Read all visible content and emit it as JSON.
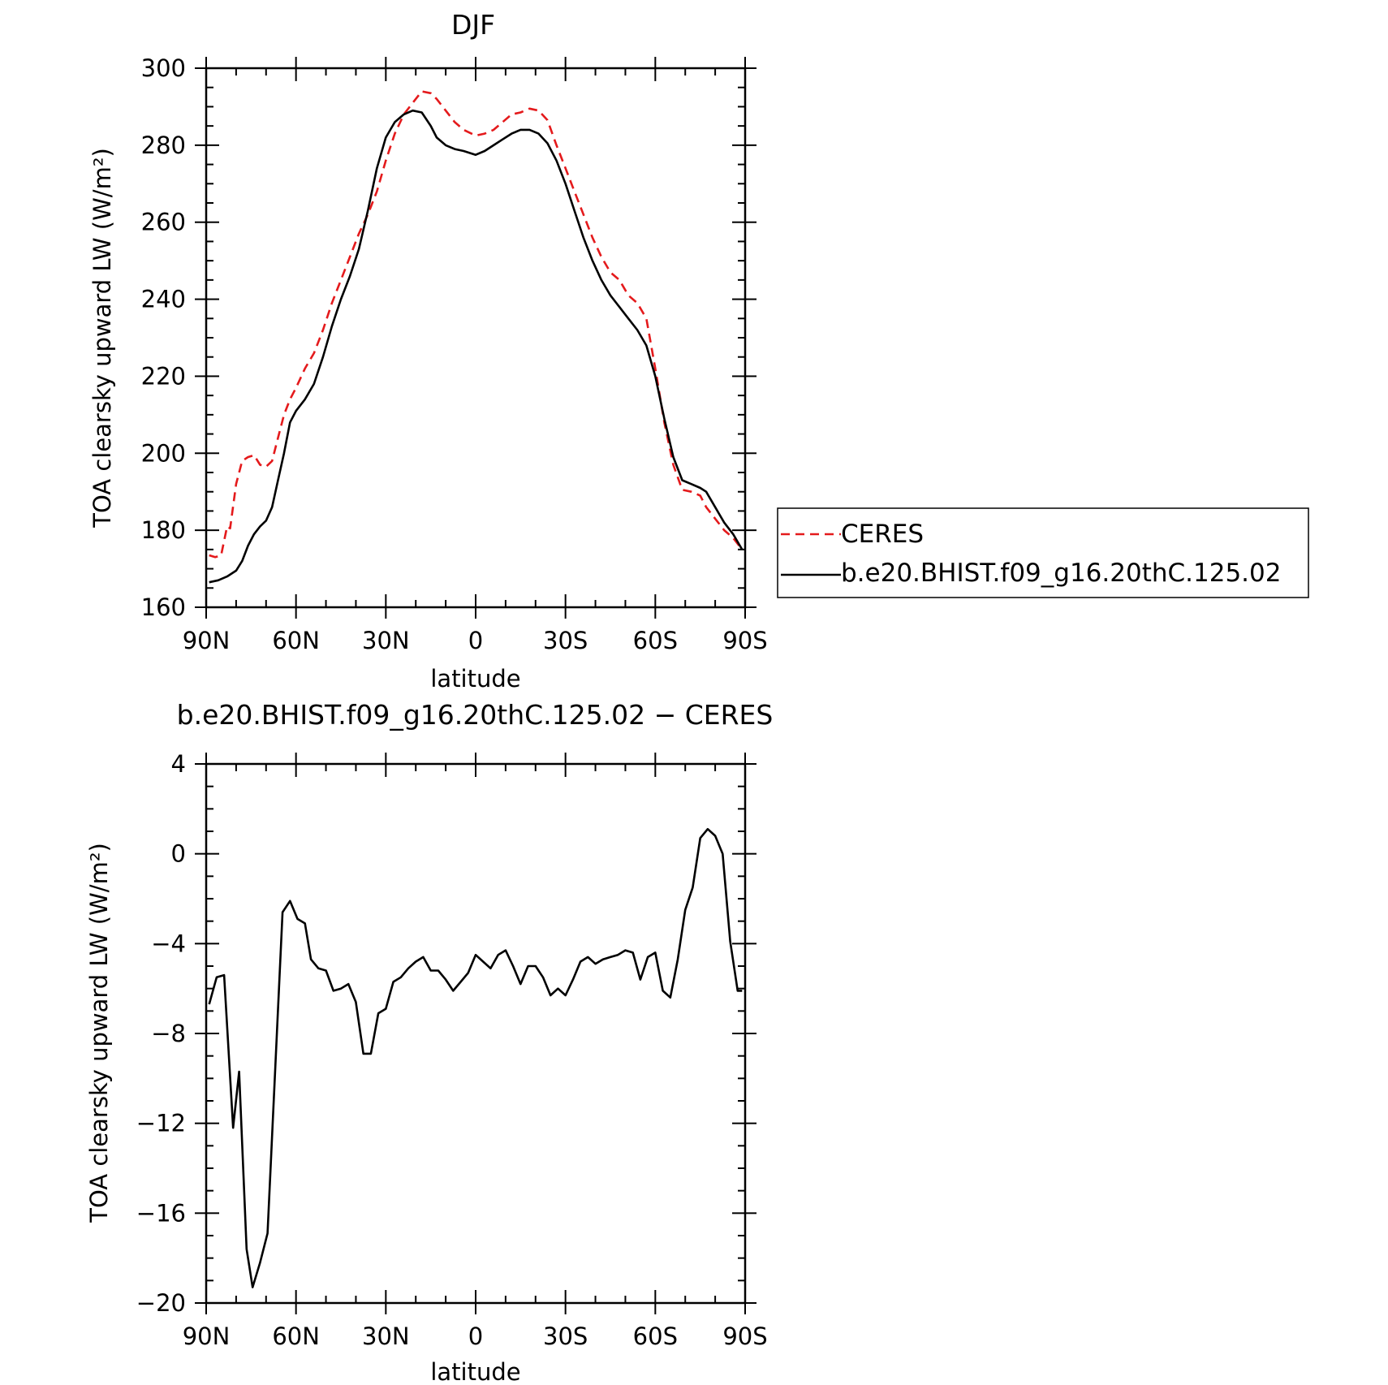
{
  "chart_data": [
    {
      "type": "line",
      "title": "DJF",
      "xlabel": "latitude",
      "ylabel": "TOA clearsky upward LW (W/m²)",
      "xlim": [
        90,
        -90
      ],
      "ylim": [
        160,
        300
      ],
      "xticks": [
        90,
        60,
        30,
        0,
        -30,
        -60,
        -90
      ],
      "xtick_labels": [
        "90N",
        "60N",
        "30N",
        "0",
        "30S",
        "60S",
        "90S"
      ],
      "yticks": [
        160,
        180,
        200,
        220,
        240,
        260,
        280,
        300
      ],
      "ytick_labels": [
        "160",
        "180",
        "200",
        "220",
        "240",
        "260",
        "280",
        "300"
      ],
      "grid": false,
      "legend_position": "right",
      "series": [
        {
          "name": "CERES",
          "color": "#e41a1c",
          "style": "dashed",
          "x": [
            89,
            87,
            85,
            83,
            82,
            80,
            78,
            76,
            74,
            72,
            70,
            68,
            66,
            64,
            62,
            60,
            57,
            54,
            51,
            48,
            45,
            42,
            39,
            36,
            33,
            30,
            27,
            24,
            21,
            18,
            15,
            13,
            10,
            7,
            4,
            0,
            -3,
            -6,
            -9,
            -12,
            -15,
            -18,
            -21,
            -24,
            -27,
            -30,
            -33,
            -36,
            -39,
            -42,
            -45,
            -48,
            -51,
            -54,
            -57,
            -60,
            -63,
            -66,
            -69,
            -72,
            -75,
            -77,
            -80,
            -83,
            -86,
            -89
          ],
          "y": [
            173.5,
            173,
            173.5,
            181,
            180.5,
            192,
            198,
            199,
            199.5,
            197,
            196.5,
            198,
            204,
            210,
            214,
            217,
            222,
            226,
            232,
            239,
            245,
            251,
            257,
            262,
            268,
            276,
            283,
            288,
            291,
            294,
            293.5,
            292,
            289,
            286,
            284,
            282.5,
            283,
            284,
            286,
            288,
            288.5,
            289.5,
            289,
            286.5,
            280,
            274,
            268,
            262,
            256,
            251,
            247,
            245,
            241,
            239,
            235,
            222,
            208,
            197,
            190.5,
            190,
            189,
            186,
            183,
            180,
            178,
            175
          ]
        },
        {
          "name": "b.e20.BHIST.f09_g16.20thC.125.02",
          "color": "#000000",
          "style": "solid",
          "x": [
            89,
            86,
            83,
            80,
            78,
            76,
            74,
            72,
            70,
            68,
            66,
            64,
            62,
            60,
            57,
            54,
            51,
            48,
            45,
            42,
            39,
            36,
            33,
            30,
            27,
            24,
            21,
            18,
            15,
            13,
            10,
            7,
            4,
            0,
            -3,
            -6,
            -9,
            -12,
            -15,
            -18,
            -21,
            -24,
            -27,
            -30,
            -33,
            -36,
            -39,
            -42,
            -45,
            -48,
            -51,
            -54,
            -57,
            -60,
            -63,
            -66,
            -69,
            -72,
            -75,
            -77,
            -80,
            -83,
            -86,
            -89
          ],
          "y": [
            166.5,
            167,
            168,
            169.5,
            172,
            176,
            179,
            181,
            182.5,
            186,
            193,
            200,
            208,
            211,
            214,
            218,
            225,
            233,
            240,
            246,
            253,
            263,
            274,
            282,
            286,
            288,
            289,
            288.5,
            285,
            282,
            280,
            279,
            278.5,
            277.5,
            278.5,
            280,
            281.5,
            283,
            284,
            284,
            283,
            280.5,
            276,
            270,
            263,
            256,
            250,
            245,
            241,
            238,
            235,
            232,
            228,
            220,
            209,
            199,
            193,
            192,
            191,
            190,
            186,
            182,
            179,
            175
          ]
        }
      ]
    },
    {
      "type": "line",
      "title": "b.e20.BHIST.f09_g16.20thC.125.02 − CERES",
      "xlabel": "latitude",
      "ylabel": "TOA clearsky upward LW (W/m²)",
      "xlim": [
        90,
        -90
      ],
      "ylim": [
        -20,
        4
      ],
      "xticks": [
        90,
        60,
        30,
        0,
        -30,
        -60,
        -90
      ],
      "xtick_labels": [
        "90N",
        "60N",
        "30N",
        "0",
        "30S",
        "60S",
        "90S"
      ],
      "yticks": [
        -20,
        -16,
        -12,
        -8,
        -4,
        0,
        4
      ],
      "ytick_labels": [
        "−20",
        "−16",
        "−12",
        "−8",
        "−4",
        "0",
        "4"
      ],
      "grid": false,
      "series": [
        {
          "color": "#000000",
          "style": "solid",
          "x": [
            89,
            86.5,
            84,
            81,
            79,
            76.5,
            74.5,
            72,
            69.5,
            64.5,
            62,
            59.5,
            57,
            55,
            52.5,
            50,
            47.5,
            45,
            42.5,
            40,
            37.5,
            35,
            32.5,
            30,
            27.5,
            25,
            22.5,
            20,
            17.5,
            15,
            12.5,
            10,
            7.5,
            5,
            2.5,
            0,
            -2.5,
            -5,
            -7.5,
            -10,
            -12.5,
            -15,
            -17.5,
            -20,
            -22.5,
            -25,
            -27.5,
            -30,
            -32.5,
            -35,
            -37.5,
            -40,
            -42.5,
            -45,
            -47.5,
            -50,
            -52.5,
            -55,
            -57.5,
            -60,
            -62.5,
            -65,
            -67.5,
            -70,
            -72.5,
            -75,
            -77.5,
            -80,
            -82.5,
            -85,
            -87.5,
            -89
          ],
          "y": [
            -6.7,
            -5.5,
            -5.4,
            -12.2,
            -9.7,
            -17.6,
            -19.3,
            -18.2,
            -16.9,
            -2.6,
            -2.1,
            -2.9,
            -3.1,
            -4.7,
            -5.1,
            -5.2,
            -6.1,
            -6.0,
            -5.8,
            -6.6,
            -8.9,
            -8.9,
            -7.1,
            -6.9,
            -5.7,
            -5.5,
            -5.1,
            -4.8,
            -4.6,
            -5.2,
            -5.2,
            -5.6,
            -6.1,
            -5.7,
            -5.3,
            -4.5,
            -4.8,
            -5.1,
            -4.5,
            -4.3,
            -5.0,
            -5.8,
            -5.0,
            -5.0,
            -5.5,
            -6.3,
            -6.0,
            -6.3,
            -5.6,
            -4.8,
            -4.6,
            -4.9,
            -4.7,
            -4.6,
            -4.5,
            -4.3,
            -4.4,
            -5.6,
            -4.6,
            -4.4,
            -6.1,
            -6.4,
            -4.7,
            -2.5,
            -1.5,
            0.7,
            1.1,
            0.8,
            0.0,
            -3.9,
            -6.1,
            -6.1
          ]
        }
      ]
    }
  ]
}
